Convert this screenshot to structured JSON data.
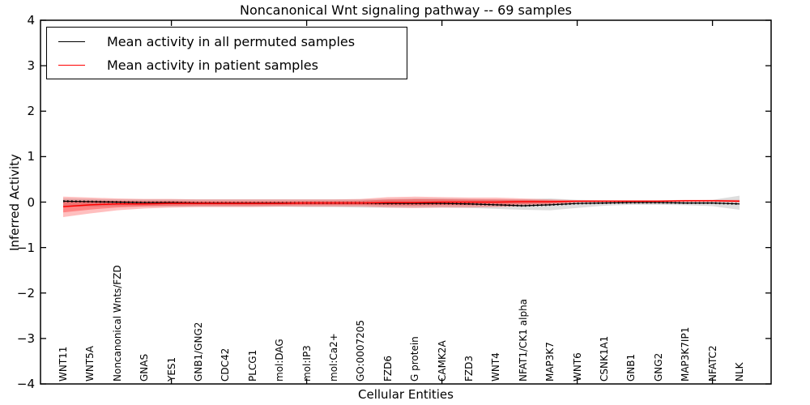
{
  "title": "Noncanonical Wnt signaling pathway -- 69 samples",
  "xlabel": "Cellular Entities",
  "ylabel": "Inferred Activity",
  "legend": {
    "entries": [
      {
        "label": "Mean activity in all permuted samples",
        "color": "#000000"
      },
      {
        "label": "Mean activity in patient samples",
        "color": "#ff0000"
      }
    ],
    "position": "upper left"
  },
  "colors": {
    "frame": "#000000",
    "permuted_band": "#000000",
    "patient_band": "#ff0000"
  },
  "chart_data": {
    "type": "line",
    "title": "Noncanonical Wnt signaling pathway -- 69 samples",
    "xlabel": "Cellular Entities",
    "ylabel": "Inferred Activity",
    "ylim": [
      -4,
      4
    ],
    "yticks": [
      -4,
      -3,
      -2,
      -1,
      0,
      1,
      2,
      3,
      4
    ],
    "xtick_mark_indices": [
      4,
      9,
      14,
      19,
      24
    ],
    "grid": false,
    "legend_position": "upper left",
    "categories": [
      "WNT11",
      "WNT5A",
      "Noncanonical Wnts/FZD",
      "GNAS",
      "YES1",
      "GNB1/GNG2",
      "CDC42",
      "PLCG1",
      "mol:DAG",
      "mol:IP3",
      "mol:Ca2+",
      "GO:0007205",
      "FZD6",
      "G protein",
      "CAMK2A",
      "FZD3",
      "WNT4",
      "NFAT1/CK1 alpha",
      "MAP3K7",
      "WNT6",
      "CSNK1A1",
      "GNB1",
      "GNG2",
      "MAP3K7IP1",
      "NFATC2",
      "NLK"
    ],
    "series": [
      {
        "name": "Mean activity in all permuted samples",
        "color": "#000000",
        "band_alpha": 0.13,
        "values": [
          0.02,
          0.01,
          0.0,
          -0.01,
          -0.01,
          -0.02,
          -0.02,
          -0.02,
          -0.02,
          -0.02,
          -0.02,
          -0.02,
          -0.03,
          -0.03,
          -0.03,
          -0.04,
          -0.06,
          -0.08,
          -0.06,
          -0.03,
          -0.02,
          -0.01,
          -0.01,
          -0.02,
          -0.02,
          -0.04
        ],
        "band_upper": [
          0.08,
          0.07,
          0.06,
          0.06,
          0.06,
          0.06,
          0.06,
          0.06,
          0.06,
          0.06,
          0.06,
          0.06,
          0.07,
          0.08,
          0.08,
          0.07,
          0.06,
          0.06,
          0.08,
          0.05,
          0.04,
          0.03,
          0.03,
          0.04,
          0.05,
          0.14
        ],
        "band_lower": [
          -0.1,
          -0.1,
          -0.09,
          -0.09,
          -0.1,
          -0.1,
          -0.1,
          -0.1,
          -0.1,
          -0.11,
          -0.11,
          -0.12,
          -0.12,
          -0.12,
          -0.12,
          -0.13,
          -0.15,
          -0.17,
          -0.18,
          -0.13,
          -0.08,
          -0.06,
          -0.06,
          -0.07,
          -0.09,
          -0.17
        ]
      },
      {
        "name": "Mean activity in patient samples",
        "color": "#ff0000",
        "band_alpha": 0.25,
        "inner_band_scale": 0.55,
        "inner_band_alpha": 0.3,
        "values": [
          -0.1,
          -0.06,
          -0.04,
          -0.04,
          -0.03,
          -0.03,
          -0.03,
          -0.03,
          -0.03,
          -0.02,
          -0.02,
          -0.02,
          -0.01,
          -0.01,
          0.0,
          0.0,
          0.0,
          0.01,
          0.01,
          0.02,
          0.02,
          0.02,
          0.02,
          0.03,
          0.03,
          0.02
        ],
        "band_upper": [
          0.12,
          0.1,
          0.08,
          0.07,
          0.07,
          0.06,
          0.06,
          0.06,
          0.06,
          0.06,
          0.06,
          0.07,
          0.11,
          0.12,
          0.11,
          0.1,
          0.1,
          0.08,
          0.06,
          0.04,
          0.04,
          0.04,
          0.04,
          0.05,
          0.05,
          0.05
        ],
        "band_lower": [
          -0.33,
          -0.25,
          -0.18,
          -0.14,
          -0.12,
          -0.11,
          -0.11,
          -0.11,
          -0.1,
          -0.1,
          -0.1,
          -0.1,
          -0.12,
          -0.13,
          -0.12,
          -0.12,
          -0.11,
          -0.09,
          -0.07,
          -0.01,
          0.0,
          0.0,
          0.0,
          0.01,
          0.01,
          -0.01
        ]
      }
    ]
  }
}
